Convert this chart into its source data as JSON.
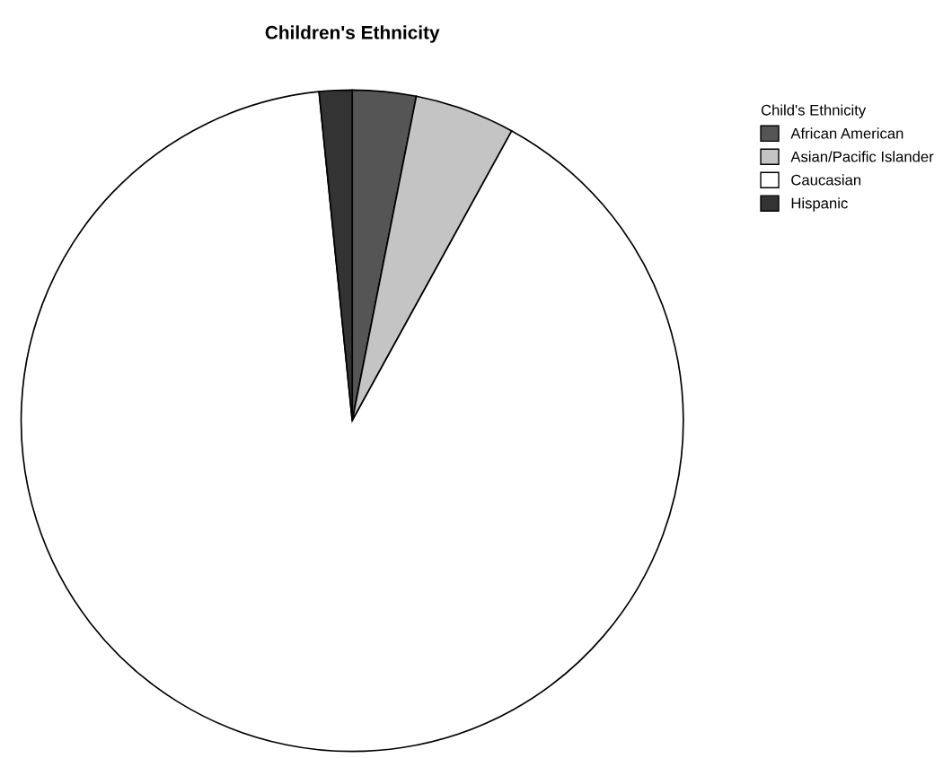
{
  "chart_data": {
    "type": "pie",
    "title": "Children's Ethnicity",
    "legend_title": "Child's Ethnicity",
    "categories": [
      "African American",
      "Asian/Pacific Islander",
      "Caucasian",
      "Hispanic"
    ],
    "values": [
      3.1,
      4.9,
      90.4,
      1.6
    ],
    "colors": [
      "#555555",
      "#c4c4c4",
      "#ffffff",
      "#333333"
    ],
    "legend": "top right"
  }
}
